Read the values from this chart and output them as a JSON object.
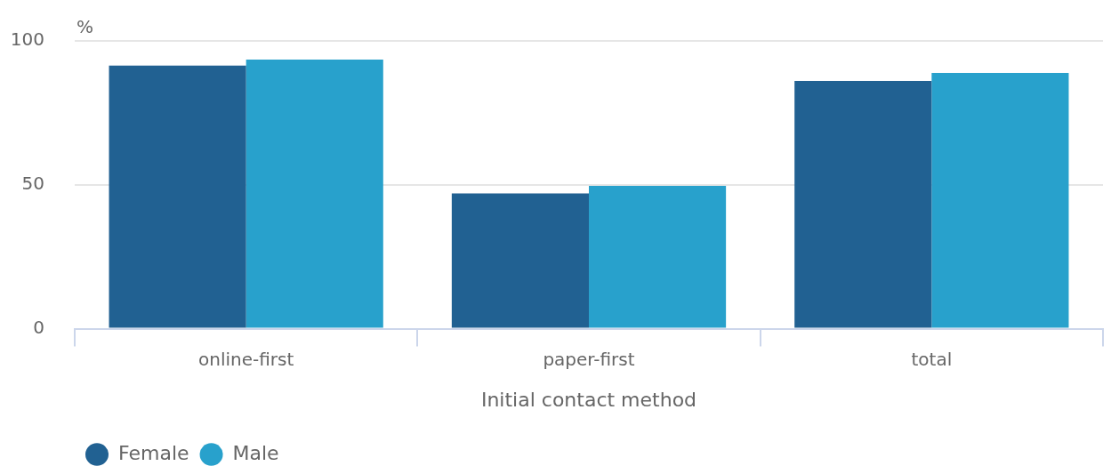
{
  "chart_data": {
    "type": "bar",
    "ylabel": "%",
    "xlabel": "Initial contact method",
    "categories": [
      "online-first",
      "paper-first",
      "total"
    ],
    "series": [
      {
        "name": "Female",
        "color": "#216192",
        "values": [
          91.4,
          47,
          86.1
        ]
      },
      {
        "name": "Male",
        "color": "#28a1cc",
        "values": [
          93.5,
          49.6,
          88.9
        ]
      }
    ],
    "ylim": [
      0,
      100
    ],
    "yticks": [
      0,
      50,
      100
    ],
    "grid": "y",
    "legend": "bottom left"
  }
}
